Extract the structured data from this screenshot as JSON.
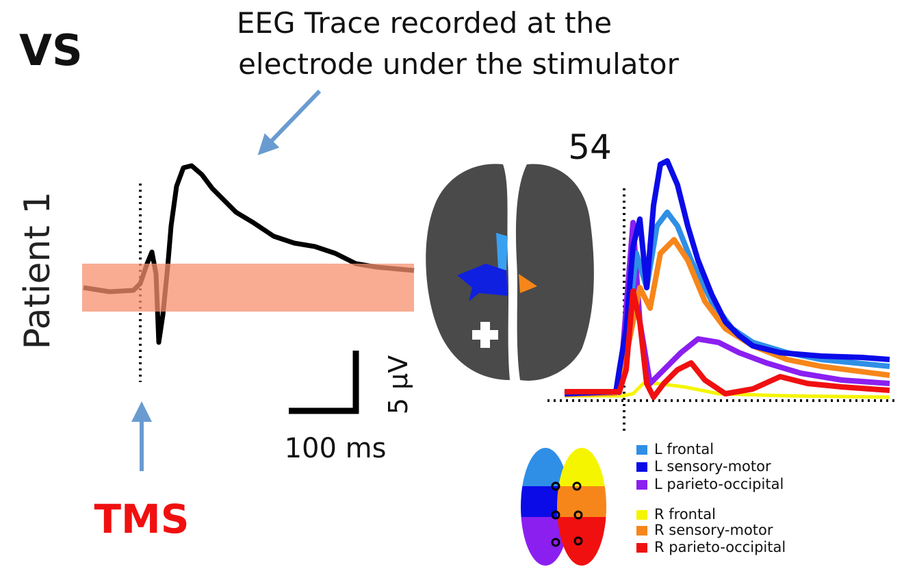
{
  "header": {
    "label": "VS"
  },
  "annotation": {
    "lines": [
      "EEG Trace recorded at the",
      "electrode under the stimulator"
    ]
  },
  "row_label": "Patient 1",
  "stimulus_label": "TMS",
  "scale_bar": {
    "amplitude": "5 µV",
    "time": "100 ms"
  },
  "panel_number": "54",
  "legend": {
    "items": [
      {
        "label": "L frontal",
        "color": "#2f8fe6"
      },
      {
        "label": "L sensory-motor",
        "color": "#0b0be8"
      },
      {
        "label": "L parieto-occipital",
        "color": "#8b1ff0"
      },
      {
        "label": "R frontal",
        "color": "#f5f500"
      },
      {
        "label": "R sensory-motor",
        "color": "#f7861a"
      },
      {
        "label": "R parieto-occipital",
        "color": "#f01010"
      }
    ]
  }
}
